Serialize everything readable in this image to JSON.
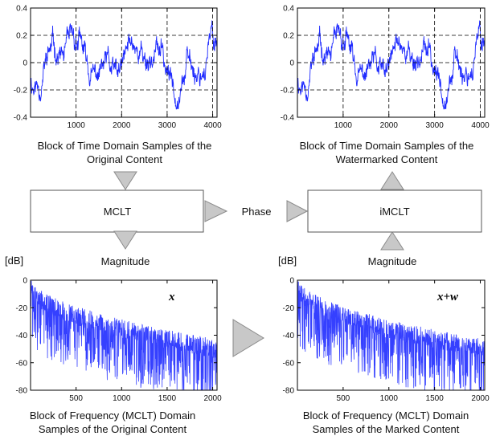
{
  "panels": {
    "time_original": {
      "caption_line1": "Block of Time Domain Samples of the",
      "caption_line2": "Original Content"
    },
    "time_watermarked": {
      "caption_line1": "Block of Time Domain Samples of the",
      "caption_line2": "Watermarked Content"
    },
    "freq_original": {
      "unit_label": "[dB]",
      "signal_label": "x",
      "caption_line1": "Block of Frequency (MCLT) Domain",
      "caption_line2": "Samples of the Original Content"
    },
    "freq_marked": {
      "unit_label": "[dB]",
      "signal_label": "x+w",
      "caption_line1": "Block of Frequency (MCLT) Domain",
      "caption_line2": "Samples of the Marked Content"
    }
  },
  "blocks": {
    "mclt": "MCLT",
    "imclt": "iMCLT"
  },
  "flow_labels": {
    "phase": "Phase",
    "magnitude_left": "Magnitude",
    "magnitude_right": "Magnitude"
  },
  "chart_data": [
    {
      "type": "line",
      "xlim": [
        0,
        4096
      ],
      "ylim": [
        -0.4,
        0.4
      ],
      "x_ticks": [
        "1000",
        "2000",
        "3000",
        "4000"
      ],
      "y_ticks": [
        "0.4",
        "0.2",
        "0",
        "-0.2",
        "-0.4"
      ],
      "y_tick_values": [
        0.4,
        0.2,
        0,
        -0.2,
        -0.4
      ],
      "x_tick_values": [
        1000,
        2000,
        3000,
        4000
      ],
      "grid": "dashed at y = -0.2, 0, 0.2 and x = 1000, 2000, 3000, 4000",
      "series_color": "#1f2bff"
    },
    {
      "type": "line",
      "xlim": [
        0,
        4096
      ],
      "ylim": [
        -0.4,
        0.4
      ],
      "x_ticks": [
        "1000",
        "2000",
        "3000",
        "4000"
      ],
      "y_ticks": [
        "0.4",
        "0.2",
        "0",
        "-0.2",
        "-0.4"
      ],
      "y_tick_values": [
        0.4,
        0.2,
        0,
        -0.2,
        -0.4
      ],
      "x_tick_values": [
        1000,
        2000,
        3000,
        4000
      ],
      "grid": "dashed at y = -0.2, 0, 0.2 and x = 1000, 2000, 3000, 4000",
      "series_color": "#1f2bff"
    },
    {
      "type": "line",
      "xlim": [
        0,
        2048
      ],
      "ylim": [
        -80,
        0
      ],
      "x_ticks": [
        "500",
        "1000",
        "1500",
        "2000"
      ],
      "x_tick_values": [
        500,
        1000,
        1500,
        2000
      ],
      "y_ticks": [
        "0",
        "-20",
        "-40",
        "-60",
        "-80"
      ],
      "y_tick_values": [
        0,
        -20,
        -40,
        -60,
        -80
      ],
      "trend": "magnitude decays from about -5 dB near x=0 to about -50 dB near x=2048, with dense dips down to -80 dB",
      "series_color": "#1f2bff"
    },
    {
      "type": "line",
      "xlim": [
        0,
        2048
      ],
      "ylim": [
        -80,
        0
      ],
      "x_ticks": [
        "500",
        "1000",
        "1500",
        "2000"
      ],
      "x_tick_values": [
        500,
        1000,
        1500,
        2000
      ],
      "y_ticks": [
        "0",
        "-20",
        "-40",
        "-60",
        "-80"
      ],
      "y_tick_values": [
        0,
        -20,
        -40,
        -60,
        -80
      ],
      "trend": "magnitude decays from about -5 dB near x=0 to about -50 dB near x=2048, with dense dips down to -80 dB",
      "series_color": "#1f2bff"
    }
  ],
  "colors": {
    "signal": "#1f2bff",
    "arrow_fill": "#c8c8c8",
    "arrow_stroke": "#8a8a8a"
  }
}
